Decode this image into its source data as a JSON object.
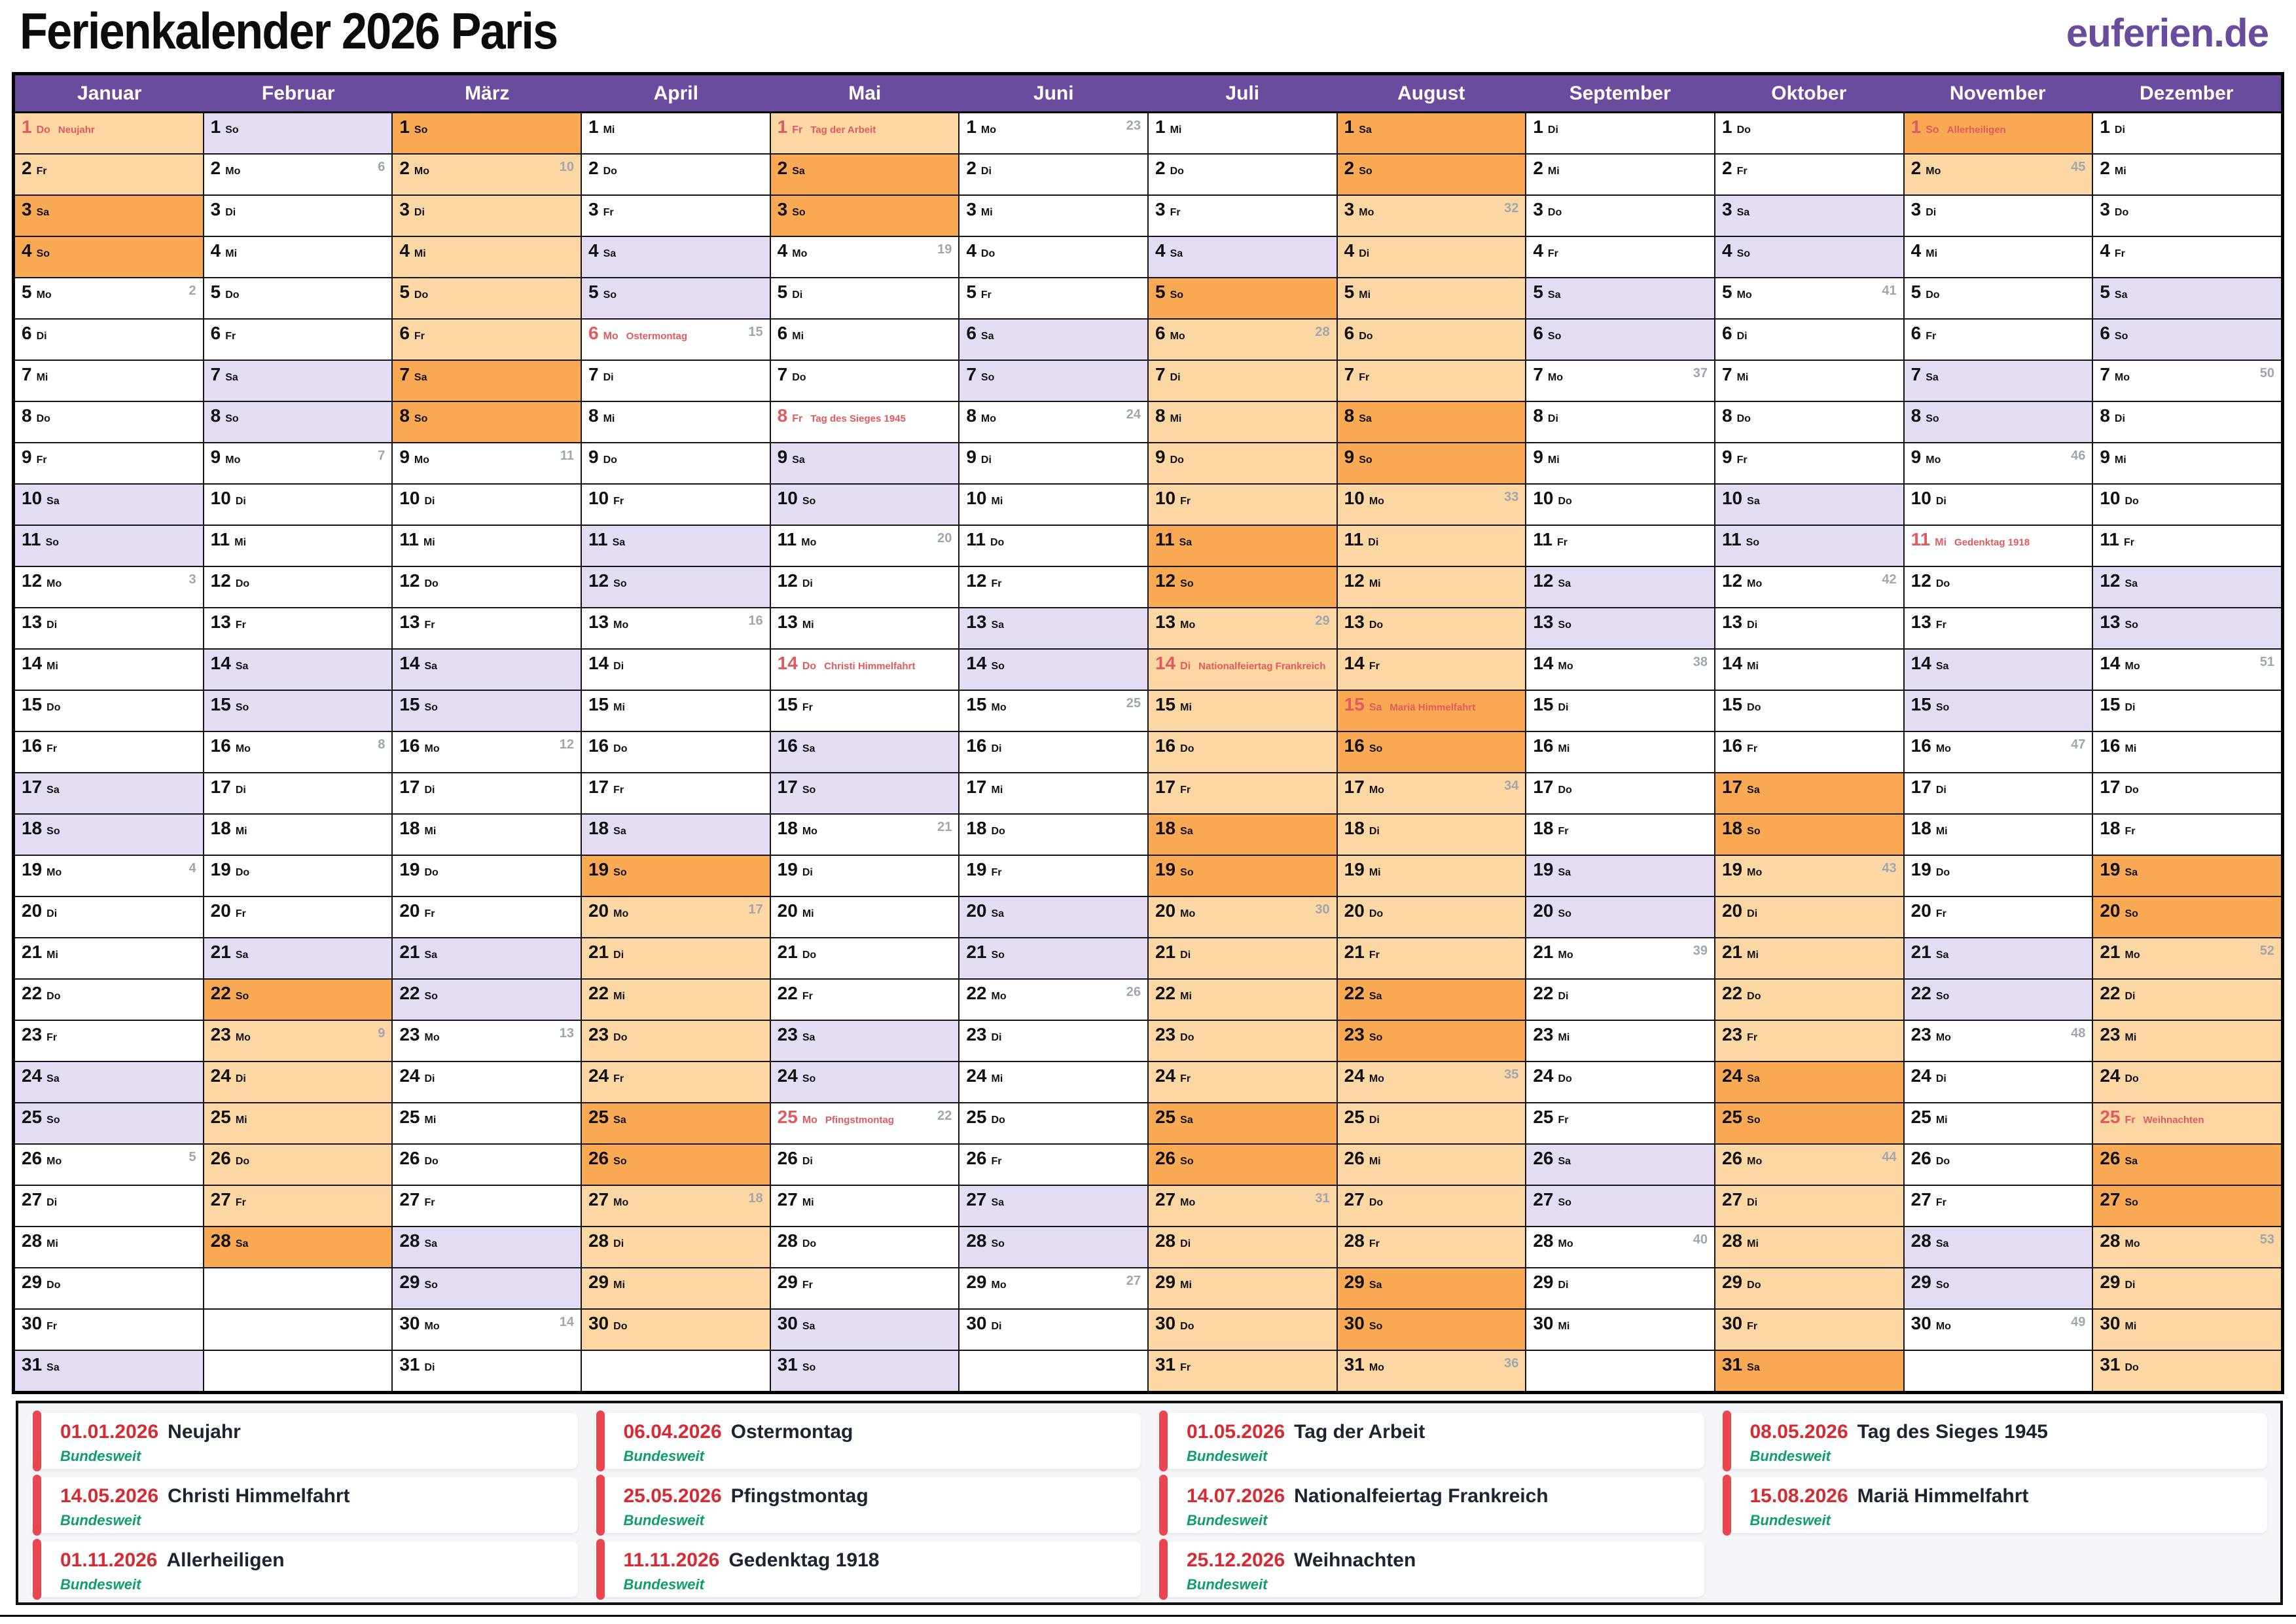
{
  "header": {
    "title": "Ferienkalender 2026 Paris",
    "logo": "euferien.de"
  },
  "colors": {
    "purple": "#6a4c9e",
    "lavender": "#e3dcf2",
    "holiday_light": "#fcd7a3",
    "holiday_dark": "#f9a953",
    "red": "#e05a5f",
    "weekgray": "#a0a6ae",
    "legendbg": "#f4f5f8",
    "barred": "#e8474f",
    "datered": "#d62b33",
    "navy": "#1b2430",
    "green": "#0f9d6a"
  },
  "calendar": {
    "weekday_names": [
      "Mo",
      "Di",
      "Mi",
      "Do",
      "Fr",
      "Sa",
      "So"
    ],
    "months": [
      {
        "name": "Januar",
        "days": 31,
        "first_weekday": 3,
        "weeks": {
          "5": 2,
          "12": 3,
          "19": 4,
          "26": 5
        },
        "holidays": {
          "1": "Neujahr"
        },
        "school_holidays": [
          [
            1,
            4
          ]
        ]
      },
      {
        "name": "Februar",
        "days": 28,
        "first_weekday": 6,
        "weeks": {
          "2": 6,
          "9": 7,
          "16": 8,
          "23": 9
        },
        "holidays": {},
        "school_holidays": [
          [
            22,
            28
          ]
        ]
      },
      {
        "name": "März",
        "days": 31,
        "first_weekday": 6,
        "weeks": {
          "2": 10,
          "9": 11,
          "16": 12,
          "23": 13,
          "30": 14
        },
        "holidays": {},
        "school_holidays": [
          [
            1,
            8
          ]
        ]
      },
      {
        "name": "April",
        "days": 30,
        "first_weekday": 2,
        "weeks": {
          "6": 15,
          "13": 16,
          "20": 17,
          "27": 18
        },
        "holidays": {
          "6": "Ostermontag"
        },
        "school_holidays": [
          [
            19,
            30
          ]
        ]
      },
      {
        "name": "Mai",
        "days": 31,
        "first_weekday": 4,
        "weeks": {
          "4": 19,
          "11": 20,
          "18": 21,
          "25": 22
        },
        "holidays": {
          "1": "Tag der Arbeit",
          "8": "Tag des Sieges 1945",
          "14": "Christi Himmelfahrt",
          "25": "Pfingstmontag"
        },
        "school_holidays": [
          [
            1,
            3
          ]
        ]
      },
      {
        "name": "Juni",
        "days": 30,
        "first_weekday": 0,
        "weeks": {
          "1": 23,
          "8": 24,
          "15": 25,
          "22": 26,
          "29": 27
        },
        "holidays": {},
        "school_holidays": []
      },
      {
        "name": "Juli",
        "days": 31,
        "first_weekday": 2,
        "weeks": {
          "6": 28,
          "13": 29,
          "20": 30,
          "27": 31
        },
        "holidays": {
          "14": "Nationalfeiertag Frankreich"
        },
        "school_holidays": [
          [
            5,
            31
          ]
        ]
      },
      {
        "name": "August",
        "days": 31,
        "first_weekday": 5,
        "weeks": {
          "3": 32,
          "10": 33,
          "17": 34,
          "24": 35,
          "31": 36
        },
        "holidays": {
          "15": "Mariä Himmelfahrt"
        },
        "school_holidays": [
          [
            1,
            31
          ]
        ]
      },
      {
        "name": "September",
        "days": 30,
        "first_weekday": 1,
        "weeks": {
          "7": 37,
          "14": 38,
          "21": 39,
          "28": 40
        },
        "holidays": {},
        "school_holidays": []
      },
      {
        "name": "Oktober",
        "days": 31,
        "first_weekday": 3,
        "weeks": {
          "5": 41,
          "12": 42,
          "19": 43,
          "26": 44
        },
        "holidays": {},
        "school_holidays": [
          [
            17,
            31
          ]
        ]
      },
      {
        "name": "November",
        "days": 30,
        "first_weekday": 6,
        "weeks": {
          "2": 45,
          "9": 46,
          "16": 47,
          "23": 48,
          "30": 49
        },
        "holidays": {
          "1": "Allerheiligen",
          "11": "Gedenktag 1918"
        },
        "school_holidays": [
          [
            1,
            2
          ]
        ]
      },
      {
        "name": "Dezember",
        "days": 31,
        "first_weekday": 1,
        "weeks": {
          "7": 50,
          "14": 51,
          "21": 52,
          "28": 53
        },
        "holidays": {
          "25": "Weihnachten"
        },
        "school_holidays": [
          [
            19,
            31
          ]
        ]
      }
    ]
  },
  "legend": {
    "region_label": "Bundesweit",
    "columns": [
      [
        {
          "date": "01.01.2026",
          "name": "Neujahr"
        },
        {
          "date": "14.05.2026",
          "name": "Christi Himmelfahrt"
        },
        {
          "date": "01.11.2026",
          "name": "Allerheiligen"
        }
      ],
      [
        {
          "date": "06.04.2026",
          "name": "Ostermontag"
        },
        {
          "date": "25.05.2026",
          "name": "Pfingstmontag"
        },
        {
          "date": "11.11.2026",
          "name": "Gedenktag 1918"
        }
      ],
      [
        {
          "date": "01.05.2026",
          "name": "Tag der Arbeit"
        },
        {
          "date": "14.07.2026",
          "name": "Nationalfeiertag Frankreich"
        },
        {
          "date": "25.12.2026",
          "name": "Weihnachten"
        }
      ],
      [
        {
          "date": "08.05.2026",
          "name": "Tag des Sieges 1945"
        },
        {
          "date": "15.08.2026",
          "name": "Mariä Himmelfahrt"
        }
      ]
    ]
  }
}
